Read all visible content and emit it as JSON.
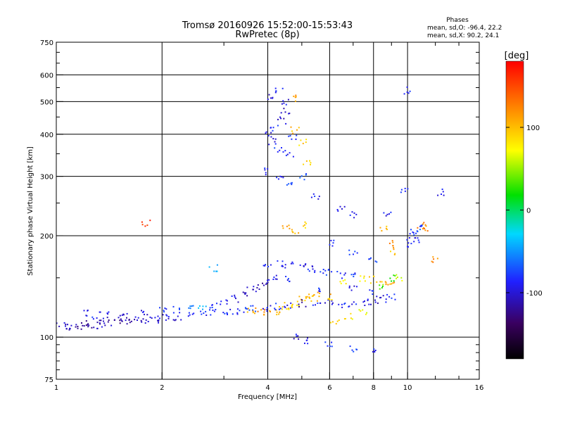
{
  "chart_data": {
    "type": "scatter",
    "title": "Tromsø 20160926 15:52:00-15:53:43",
    "subtitle": "RwPretec (8p)",
    "xlabel": "Frequency [MHz]",
    "ylabel": "Stationary phase Virtual Height [km]",
    "x_scale": "log",
    "y_scale": "log",
    "xlim": [
      1,
      16
    ],
    "ylim": [
      75,
      750
    ],
    "x_ticks": [
      1,
      2,
      4,
      6,
      8,
      10,
      16
    ],
    "x_tick_labels": [
      "1",
      "2",
      "4",
      "6",
      "8",
      "10",
      "16"
    ],
    "y_ticks": [
      75,
      100,
      200,
      300,
      400,
      500,
      600,
      750
    ],
    "y_tick_labels": [
      "75",
      "100",
      "200",
      "300",
      "400",
      "500",
      "600",
      "750"
    ],
    "grid_x": [
      2,
      4,
      6,
      8,
      10
    ],
    "grid_y": [
      100,
      200,
      300,
      400,
      500,
      600
    ],
    "colorbar": {
      "label": "[deg]",
      "min": -180,
      "max": 180,
      "ticks": [
        -100,
        0,
        100
      ],
      "tick_labels": [
        "-100",
        "0",
        "100"
      ]
    },
    "stats": {
      "title": "Phases",
      "line_o": "mean, sd,O: -96.4, 22.2",
      "line_x": "mean, sd,X:  90.2, 24.1"
    },
    "traces": [
      {
        "name_hint": "E-low",
        "points": [
          [
            1.0,
            109,
            -118
          ],
          [
            1.05,
            108,
            -120
          ],
          [
            1.1,
            107,
            -125
          ],
          [
            1.15,
            108,
            -130
          ],
          [
            1.2,
            108,
            -135
          ],
          [
            1.25,
            109,
            -130
          ],
          [
            1.3,
            108,
            -125
          ],
          [
            1.35,
            110,
            -120
          ],
          [
            1.4,
            110,
            -125
          ],
          [
            1.5,
            110,
            -130
          ],
          [
            1.6,
            111,
            -125
          ],
          [
            1.7,
            112,
            -120
          ],
          [
            1.8,
            112,
            -118
          ],
          [
            1.9,
            113,
            -115
          ],
          [
            2.0,
            114,
            -115
          ],
          [
            2.1,
            114,
            -110
          ],
          [
            2.2,
            115,
            -110
          ],
          [
            2.4,
            116,
            -105
          ],
          [
            2.6,
            117,
            -100
          ],
          [
            2.8,
            118,
            -100
          ],
          [
            3.0,
            119,
            -95
          ],
          [
            3.2,
            120,
            -95
          ],
          [
            3.4,
            121,
            -90
          ],
          [
            3.6,
            122,
            -85
          ]
        ]
      },
      {
        "name_hint": "E-upper",
        "points": [
          [
            1.2,
            118,
            -105
          ],
          [
            1.3,
            116,
            -100
          ],
          [
            1.4,
            116,
            -110
          ],
          [
            1.5,
            115,
            -115
          ],
          [
            1.6,
            115,
            -120
          ],
          [
            1.8,
            117,
            -110
          ],
          [
            2.0,
            120,
            -100
          ],
          [
            2.2,
            121,
            -95
          ],
          [
            2.4,
            122,
            -60
          ],
          [
            2.6,
            123,
            -40
          ],
          [
            2.8,
            125,
            -90
          ],
          [
            3.0,
            127,
            -100
          ],
          [
            3.2,
            130,
            -110
          ],
          [
            3.4,
            134,
            -115
          ],
          [
            3.6,
            138,
            -120
          ],
          [
            3.8,
            142,
            -125
          ],
          [
            4.0,
            145,
            -118
          ]
        ]
      },
      {
        "name_hint": "Es",
        "points": [
          [
            3.6,
            120,
            110
          ],
          [
            3.8,
            119,
            120
          ],
          [
            4.0,
            118,
            115
          ],
          [
            4.2,
            119,
            105
          ],
          [
            4.4,
            121,
            100
          ],
          [
            4.6,
            124,
            90
          ],
          [
            4.8,
            126,
            85
          ],
          [
            5.0,
            129,
            90
          ],
          [
            5.2,
            130,
            95
          ],
          [
            5.4,
            131,
            100
          ]
        ]
      },
      {
        "name_hint": "F-low",
        "points": [
          [
            4.0,
            122,
            -100
          ],
          [
            4.3,
            123,
            -95
          ],
          [
            4.6,
            125,
            -110
          ],
          [
            5.0,
            126,
            -120
          ],
          [
            5.5,
            125,
            -100
          ],
          [
            6.0,
            126,
            -105
          ],
          [
            6.5,
            125,
            -95
          ],
          [
            7.0,
            126,
            -100
          ],
          [
            7.5,
            127,
            -110
          ],
          [
            8.0,
            128,
            -115
          ],
          [
            8.5,
            130,
            -105
          ],
          [
            9.0,
            131,
            -100
          ]
        ]
      },
      {
        "name_hint": "F-mid",
        "points": [
          [
            4.0,
            165,
            -95
          ],
          [
            4.3,
            166,
            -100
          ],
          [
            4.6,
            164,
            -105
          ],
          [
            5.0,
            162,
            -110
          ],
          [
            5.3,
            160,
            -100
          ],
          [
            5.6,
            158,
            -95
          ],
          [
            6.0,
            155,
            -90
          ],
          [
            6.5,
            153,
            -100
          ],
          [
            7.0,
            152,
            -95
          ],
          [
            7.5,
            150,
            80
          ],
          [
            8.0,
            148,
            90
          ],
          [
            8.5,
            146,
            100
          ],
          [
            9.0,
            145,
            110
          ],
          [
            9.5,
            150,
            60
          ]
        ]
      },
      {
        "name_hint": "F-high",
        "points": [
          [
            10.0,
            190,
            -100
          ],
          [
            10.2,
            200,
            -95
          ],
          [
            10.5,
            205,
            -90
          ],
          [
            10.8,
            210,
            -85
          ],
          [
            11.0,
            215,
            130
          ],
          [
            11.2,
            210,
            120
          ],
          [
            10.5,
            195,
            -105
          ]
        ]
      },
      {
        "name_hint": "Spread",
        "points": [
          [
            4.0,
            400,
            -110
          ],
          [
            4.1,
            380,
            -105
          ],
          [
            4.2,
            420,
            -100
          ],
          [
            4.3,
            360,
            -95
          ],
          [
            4.4,
            440,
            -115
          ],
          [
            4.5,
            470,
            -120
          ],
          [
            4.6,
            350,
            -105
          ],
          [
            4.7,
            390,
            -100
          ],
          [
            4.8,
            410,
            100
          ],
          [
            5.0,
            380,
            90
          ],
          [
            5.2,
            330,
            95
          ],
          [
            4.1,
            520,
            -110
          ],
          [
            4.3,
            540,
            -100
          ],
          [
            4.5,
            500,
            -105
          ],
          [
            4.7,
            510,
            110
          ],
          [
            4.0,
            310,
            -100
          ],
          [
            4.3,
            300,
            -95
          ],
          [
            4.6,
            290,
            -90
          ],
          [
            5.0,
            300,
            -85
          ],
          [
            5.5,
            260,
            -100
          ],
          [
            6.5,
            240,
            -110
          ],
          [
            7.0,
            230,
            -105
          ],
          [
            8.5,
            210,
            100
          ],
          [
            9.0,
            190,
            120
          ],
          [
            4.5,
            210,
            110
          ],
          [
            4.8,
            205,
            100
          ],
          [
            5.0,
            215,
            90
          ],
          [
            6.0,
            190,
            -100
          ],
          [
            7.0,
            180,
            -95
          ],
          [
            8.0,
            170,
            -90
          ],
          [
            9.0,
            180,
            100
          ],
          [
            5.5,
            140,
            -100
          ],
          [
            6.5,
            145,
            80
          ],
          [
            7.0,
            140,
            -110
          ],
          [
            8.0,
            135,
            -100
          ],
          [
            4.8,
            100,
            -110
          ],
          [
            5.2,
            98,
            -100
          ],
          [
            6.0,
            95,
            -95
          ],
          [
            7.0,
            92,
            -90
          ],
          [
            8.0,
            90,
            -100
          ],
          [
            6.2,
            110,
            90
          ],
          [
            6.8,
            115,
            80
          ],
          [
            7.5,
            118,
            70
          ],
          [
            8.5,
            140,
            40
          ],
          [
            9.0,
            150,
            30
          ],
          [
            4.2,
            150,
            -110
          ],
          [
            4.5,
            148,
            -100
          ],
          [
            5.5,
            135,
            110
          ],
          [
            6.0,
            132,
            100
          ],
          [
            10.0,
            540,
            -100
          ],
          [
            1.8,
            218,
            160
          ],
          [
            2.8,
            160,
            -40
          ],
          [
            12.0,
            170,
            120
          ],
          [
            12.5,
            270,
            -110
          ],
          [
            9.8,
            270,
            -100
          ],
          [
            8.8,
            230,
            -105
          ]
        ]
      }
    ]
  }
}
